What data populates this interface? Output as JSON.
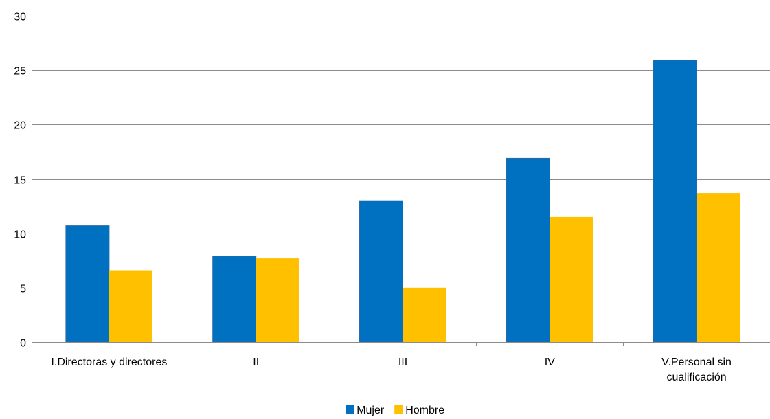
{
  "chart_data": {
    "type": "bar",
    "title": "",
    "xlabel": "",
    "ylabel": "",
    "categories": [
      [
        "I.Directoras y directores"
      ],
      [
        "II"
      ],
      [
        "III"
      ],
      [
        "IV"
      ],
      [
        "V.Personal sin",
        "cualificación"
      ]
    ],
    "series": [
      {
        "name": "Mujer",
        "color": "#0070c0",
        "values": [
          10.7,
          7.9,
          13.0,
          16.9,
          25.9
        ]
      },
      {
        "name": "Hombre",
        "color": "#ffc000",
        "values": [
          6.6,
          7.7,
          5.0,
          11.5,
          13.7
        ]
      }
    ],
    "ylim": [
      0,
      30
    ],
    "yticks": [
      0,
      5,
      10,
      15,
      20,
      25,
      30
    ],
    "grid": true,
    "legend_position": "bottom-center"
  }
}
